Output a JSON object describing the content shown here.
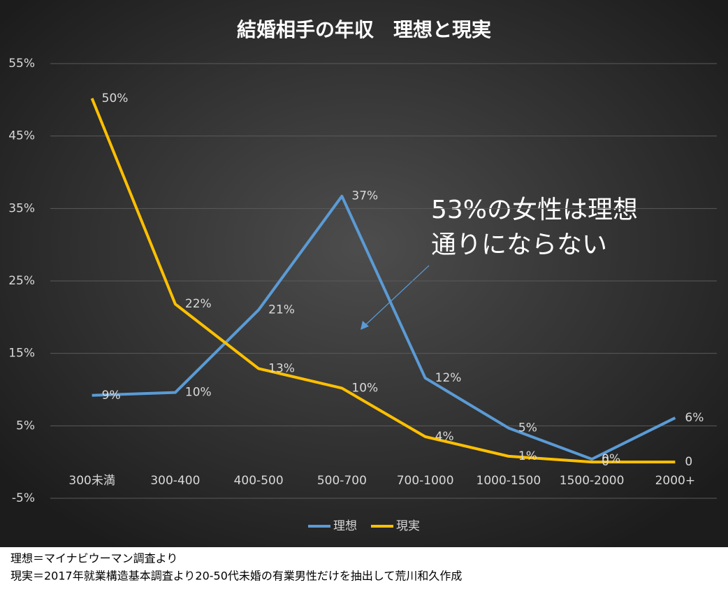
{
  "chart_data": {
    "type": "line",
    "title": "結婚相手の年収　理想と現実",
    "categories": [
      "300未満",
      "300-400",
      "400-500",
      "500-700",
      "700-1000",
      "1000-1500",
      "1500-2000",
      "2000+"
    ],
    "series": [
      {
        "name": "理想",
        "color": "#5b9bd5",
        "values": [
          9.2,
          9.6,
          21,
          36.7,
          11.6,
          4.7,
          0.4,
          6.1
        ],
        "value_labels": [
          "9%",
          "10%",
          "21%",
          "37%",
          "12%",
          "5%",
          "0%",
          "6%"
        ]
      },
      {
        "name": "現実",
        "color": "#ffc000",
        "values": [
          50.2,
          21.8,
          12.9,
          10.2,
          3.5,
          0.8,
          0,
          0
        ],
        "value_labels": [
          "50%",
          "22%",
          "13%",
          "10%",
          "4%",
          "1%",
          "0",
          "0"
        ]
      }
    ],
    "ylim": [
      -5,
      55
    ],
    "yticks": [
      {
        "value": -5,
        "label": "-5%"
      },
      {
        "value": 5,
        "label": "5%"
      },
      {
        "value": 15,
        "label": "15%"
      },
      {
        "value": 25,
        "label": "25%"
      },
      {
        "value": 35,
        "label": "35%"
      },
      {
        "value": 45,
        "label": "45%"
      },
      {
        "value": 55,
        "label": "55%"
      }
    ],
    "grid": true,
    "legend": "bottom",
    "annotations": [
      "53%の女性は理想",
      "通りにならない"
    ],
    "notes": [
      "理想＝マイナビウーマン調査より",
      "現実＝2017年就業構造基本調査より20-50代未婚の有業男性だけを抽出して荒川和久作成"
    ]
  }
}
